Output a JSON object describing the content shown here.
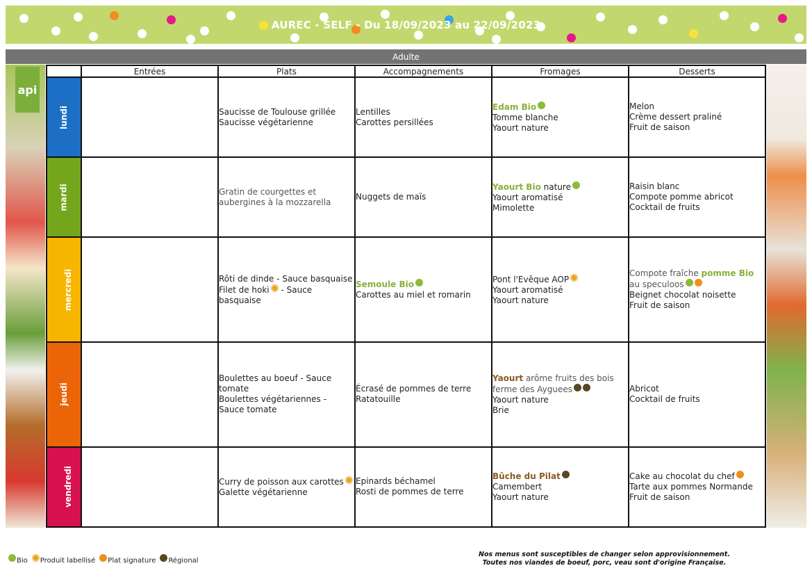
{
  "header": {
    "title": "AUREC - SELF - Du 18/09/2023 au 22/09/2023"
  },
  "colors": {
    "banner": "#c2d86e",
    "audience_bar": "#737373",
    "bio": "#8ab13a",
    "regional": "#8a5a24"
  },
  "brand": {
    "logo_text": "api"
  },
  "audience": "Adulte",
  "columns": [
    "Entrées",
    "Plats",
    "Accompagnements",
    "Fromages",
    "Desserts"
  ],
  "days": [
    {
      "name": "lundi",
      "color": "#1c6fc4",
      "entrees": [],
      "plats": [
        {
          "text": "Saucisse de Toulouse grillée"
        },
        {
          "text": "Saucisse végétarienne"
        }
      ],
      "accompagnements": [
        {
          "text": "Lentilles"
        },
        {
          "text": "Carottes persillées"
        }
      ],
      "fromages": [
        {
          "bold": "Edam Bio",
          "style": "bio",
          "icons": [
            "bio-icon"
          ]
        },
        {
          "text": "Tomme blanche"
        },
        {
          "text": "Yaourt nature"
        }
      ],
      "desserts": [
        {
          "text": "Melon"
        },
        {
          "text": "Crème dessert praliné"
        },
        {
          "text": "Fruit de saison"
        }
      ]
    },
    {
      "name": "mardi",
      "color": "#74a61c",
      "entrees": [],
      "plats": [
        {
          "text": "Gratin de courgettes et aubergines à la mozzarella",
          "gray": true
        }
      ],
      "accompagnements": [
        {
          "text": "Nuggets de maïs"
        }
      ],
      "fromages": [
        {
          "bold": "Yaourt Bio",
          "style": "bio",
          "text": " nature",
          "icons": [
            "bio-icon"
          ]
        },
        {
          "text": "Yaourt aromatisé"
        },
        {
          "text": "Mimolette"
        }
      ],
      "desserts": [
        {
          "text": "Raisin blanc"
        },
        {
          "text": "Compote pomme abricot"
        },
        {
          "text": "Cocktail de fruits"
        }
      ]
    },
    {
      "name": "mercredi",
      "color": "#f7b500",
      "entrees": [],
      "plats": [
        {
          "text": "Rôti de dinde - Sauce basquaise"
        },
        {
          "text": "Filet de hoki",
          "icons": [
            "label-icon"
          ],
          "after": " - Sauce basquaise"
        }
      ],
      "accompagnements": [
        {
          "bold": "Semoule Bio",
          "style": "bio",
          "icons": [
            "bio-icon"
          ]
        },
        {
          "text": "Carottes au miel et romarin"
        }
      ],
      "fromages": [
        {
          "text": "Pont l'Evêque AOP",
          "icons": [
            "label-icon"
          ]
        },
        {
          "text": "Yaourt aromatisé"
        },
        {
          "text": "Yaourt nature"
        }
      ],
      "desserts": [
        {
          "text": "Compote fraîche ",
          "gray": true,
          "bold": "pomme Bio",
          "style": "bio",
          "after": " au speculoos",
          "icons": [
            "bio-icon",
            "signature-icon"
          ]
        },
        {
          "text": "Beignet chocolat noisette"
        },
        {
          "text": "Fruit de saison"
        }
      ]
    },
    {
      "name": "jeudi",
      "color": "#ec6408",
      "entrees": [],
      "plats": [
        {
          "text": "Boulettes au boeuf - Sauce tomate"
        },
        {
          "text": "Boulettes végétariennes - Sauce tomate"
        }
      ],
      "accompagnements": [
        {
          "text": "Écrasé de pommes de terre"
        },
        {
          "text": "Ratatouille"
        }
      ],
      "fromages": [
        {
          "bold": "Yaourt",
          "style": "reg",
          "text": " arôme fruits des bois ferme des Ayguees",
          "gray": true,
          "icons": [
            "regional-icon",
            "regional-icon"
          ]
        },
        {
          "text": "Yaourt nature"
        },
        {
          "text": "Brie"
        }
      ],
      "desserts": [
        {
          "text": "Abricot"
        },
        {
          "text": "Cocktail de fruits"
        }
      ]
    },
    {
      "name": "vendredi",
      "color": "#d7104f",
      "entrees": [],
      "plats": [
        {
          "text": "Curry de poisson aux carottes",
          "icons": [
            "label-icon"
          ]
        },
        {
          "text": "Galette végétarienne"
        }
      ],
      "accompagnements": [
        {
          "text": "Epinards béchamel"
        },
        {
          "text": "Rosti de pommes de terre"
        }
      ],
      "fromages": [
        {
          "bold": "Bûche du Pilat",
          "style": "reg",
          "icons": [
            "regional-icon"
          ]
        },
        {
          "text": "Camembert"
        },
        {
          "text": "Yaourt nature"
        }
      ],
      "desserts": [
        {
          "text": "Cake au chocolat du chef",
          "icons": [
            "signature-icon"
          ]
        },
        {
          "text": "Tarte aux pommes Normande"
        },
        {
          "text": "Fruit de saison"
        }
      ]
    }
  ],
  "legend": [
    {
      "icon": "bio-icon",
      "label": "Bio"
    },
    {
      "icon": "label-icon",
      "label": "Produit labellisé"
    },
    {
      "icon": "signature-icon",
      "label": "Plat signature"
    },
    {
      "icon": "regional-icon",
      "label": "Régional"
    }
  ],
  "notes": {
    "line1": "Nos menus sont susceptibles de changer selon approvisionnement.",
    "line2": "Toutes nos viandes de boeuf, porc, veau sont d'origine Française."
  }
}
